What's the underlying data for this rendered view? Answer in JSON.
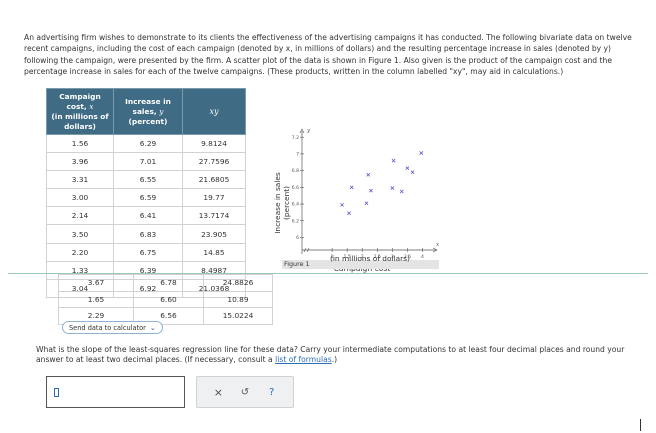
{
  "problem": {
    "intro": "An advertising firm wishes to demonstrate to its clients the effectiveness of the advertising campaigns it has conducted. The following bivariate data on twelve recent campaigns, including the cost of each campaign (denoted by x, in millions of dollars) and the resulting percentage increase in sales (denoted by y) following the campaign, were presented by the firm. A scatter plot of the data is shown in Figure 1. Also given is the product of the campaign cost and the percentage increase in sales for each of the twelve campaigns. (These products, written in the column labelled \"xy\", may aid in calculations.)"
  },
  "table": {
    "headers": {
      "col1_line1": "Campaign",
      "col1_line2": "cost,",
      "col1_var": "x",
      "col1_line3": "(in millions of",
      "col1_line4": "dollars)",
      "col2_line1": "Increase in",
      "col2_line2": "sales,",
      "col2_var": "y",
      "col2_line3": "(percent)",
      "col3": "xy"
    },
    "rows": [
      [
        "1.56",
        "6.29",
        "9.8124"
      ],
      [
        "3.96",
        "7.01",
        "27.7596"
      ],
      [
        "3.31",
        "6.55",
        "21.6805"
      ],
      [
        "3.00",
        "6.59",
        "19.77"
      ],
      [
        "2.14",
        "6.41",
        "13.7174"
      ],
      [
        "3.50",
        "6.83",
        "23.905"
      ],
      [
        "2.20",
        "6.75",
        "14.85"
      ],
      [
        "1.33",
        "6.39",
        "8.4987"
      ],
      [
        "3.04",
        "6.92",
        "21.0368"
      ],
      [
        "3.67",
        "6.78",
        "24.8826"
      ],
      [
        "1.65",
        "6.60",
        "10.89"
      ],
      [
        "2.29",
        "6.56",
        "15.0224"
      ]
    ]
  },
  "send_button": {
    "label": "Send data to calculator",
    "icon": "chevron-down-icon"
  },
  "figure": {
    "label": "Figure 1"
  },
  "chart_data": {
    "type": "scatter",
    "xlabel": "Campaign cost",
    "xlabel_sub": "(in millions of dollars)",
    "ylabel": "Increase in sales",
    "ylabel_sub": "(percent)",
    "x_axis_var": "x",
    "y_axis_var": "y",
    "xlim": [
      0,
      4.25
    ],
    "ylim": [
      5.85,
      7.25
    ],
    "x_ticks": [
      "1",
      "1.5",
      "2",
      "2.5",
      "3",
      "3.5",
      "4"
    ],
    "x_tick_values": [
      1,
      1.5,
      2,
      2.5,
      3,
      3.5,
      4
    ],
    "y_ticks": [
      "6",
      "6.2",
      "6.4",
      "6.6",
      "6.8",
      "7",
      "7.2"
    ],
    "y_tick_values": [
      6,
      6.2,
      6.4,
      6.6,
      6.8,
      7,
      7.2
    ],
    "grid": false,
    "marker_color": "#5b5bd6",
    "points": [
      [
        1.56,
        6.29
      ],
      [
        3.96,
        7.01
      ],
      [
        3.31,
        6.55
      ],
      [
        3.0,
        6.59
      ],
      [
        2.14,
        6.41
      ],
      [
        3.5,
        6.83
      ],
      [
        2.2,
        6.75
      ],
      [
        1.33,
        6.39
      ],
      [
        3.04,
        6.92
      ],
      [
        3.67,
        6.78
      ],
      [
        1.65,
        6.6
      ],
      [
        2.29,
        6.56
      ]
    ]
  },
  "question": {
    "text": "What is the slope of the least-squares regression line for these data? Carry your intermediate computations to at least four decimal places and round your answer to at least two decimal places. (If necessary, consult a",
    "link": "list of formulas",
    "end": ".)"
  },
  "answer": {
    "value": ""
  },
  "actions": {
    "clear": "×",
    "undo": "↺",
    "help": "?"
  },
  "colors": {
    "header_bg": "#3f6b84",
    "link": "#2b6db3",
    "accent": "#9ac6c0"
  }
}
